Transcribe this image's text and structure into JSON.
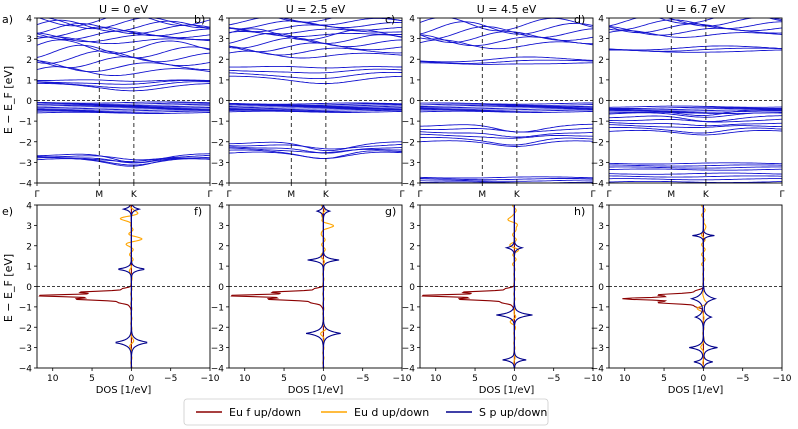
{
  "figure": {
    "ylabel_bands": "E − E_F [eV]",
    "ylabel_dos": "E − E_F [eV]",
    "xlabel_dos": "DOS [1/eV]"
  },
  "legend": {
    "items": [
      {
        "label": "Eu f up/down",
        "color": "#8b0000"
      },
      {
        "label": "Eu d up/down",
        "color": "#ffa500"
      },
      {
        "label": "S p up/down",
        "color": "#00008b"
      }
    ]
  },
  "colors": {
    "bands": "#1515d0",
    "eu_f": "#8b0000",
    "eu_d": "#ffa500",
    "s_p": "#00008b"
  },
  "chart_data": [
    {
      "type": "line",
      "panel": "a)",
      "title": "U = 0 eV",
      "x_ticks": [
        "Γ",
        "M",
        "K",
        "Γ"
      ],
      "ylim": [
        -4,
        4
      ],
      "y_ticks": [
        -4,
        -3,
        -2,
        -1,
        0,
        1,
        2,
        3,
        4
      ],
      "vlines": [
        "M",
        "K"
      ],
      "hline": 0,
      "band_groups": [
        {
          "center": -2.75,
          "spread": 0.12,
          "count": 6,
          "shape": "gap_at_K",
          "shift": -0.35
        },
        {
          "center": -0.35,
          "spread": 0.25,
          "count": 10,
          "shape": "flat",
          "shift": 0.05
        },
        {
          "center": 0.9,
          "spread": 0.15,
          "count": 4,
          "shape": "dip_at_K",
          "shift": -0.2
        },
        {
          "center": 2.0,
          "spread": 0.6,
          "count": 6,
          "shape": "wavy",
          "shift": 0.4
        },
        {
          "center": 3.4,
          "spread": 0.5,
          "count": 8,
          "shape": "wavy",
          "shift": 0.3
        }
      ]
    },
    {
      "type": "line",
      "panel": "b)",
      "title": "U = 2.5 eV",
      "x_ticks": [
        "Γ",
        "M",
        "K",
        "Γ"
      ],
      "ylim": [
        -4,
        4
      ],
      "y_ticks": [
        -4,
        -3,
        -2,
        -1,
        0,
        1,
        2,
        3,
        4
      ],
      "vlines": [
        "M",
        "K"
      ],
      "hline": 0,
      "band_groups": [
        {
          "center": -2.3,
          "spread": 0.25,
          "count": 6,
          "shape": "gap_at_K",
          "shift": -0.35
        },
        {
          "center": -0.35,
          "spread": 0.2,
          "count": 10,
          "shape": "flat",
          "shift": 0.05
        },
        {
          "center": 1.4,
          "spread": 0.3,
          "count": 4,
          "shape": "dip_at_K",
          "shift": -0.2
        },
        {
          "center": 2.7,
          "spread": 0.5,
          "count": 6,
          "shape": "wavy",
          "shift": 0.3
        },
        {
          "center": 3.6,
          "spread": 0.4,
          "count": 6,
          "shape": "wavy",
          "shift": 0.2
        }
      ]
    },
    {
      "type": "line",
      "panel": "c)",
      "title": "U = 4.5  eV",
      "x_ticks": [
        "Γ",
        "M",
        "K",
        "Γ"
      ],
      "ylim": [
        -4,
        4
      ],
      "y_ticks": [
        -4,
        -3,
        -2,
        -1,
        0,
        1,
        2,
        3,
        4
      ],
      "vlines": [
        "M",
        "K"
      ],
      "hline": 0,
      "band_groups": [
        {
          "center": -3.85,
          "spread": 0.12,
          "count": 4,
          "shape": "flat",
          "shift": 0.05
        },
        {
          "center": -1.6,
          "spread": 0.4,
          "count": 6,
          "shape": "gap_at_K",
          "shift": -0.3
        },
        {
          "center": -0.35,
          "spread": 0.2,
          "count": 8,
          "shape": "flat",
          "shift": 0.05
        },
        {
          "center": 1.85,
          "spread": 0.1,
          "count": 3,
          "shape": "dip_at_K",
          "shift": 0.1
        },
        {
          "center": 3.2,
          "spread": 0.5,
          "count": 6,
          "shape": "wavy",
          "shift": 0.4
        }
      ]
    },
    {
      "type": "line",
      "panel": "d)",
      "title": "U = 6.7 eV",
      "x_ticks": [
        "Γ",
        "M",
        "K",
        "Γ"
      ],
      "ylim": [
        -4,
        4
      ],
      "y_ticks": [
        -4,
        -3,
        -2,
        -1,
        0,
        1,
        2,
        3,
        4
      ],
      "vlines": [
        "M",
        "K"
      ],
      "hline": 0,
      "band_groups": [
        {
          "center": -3.75,
          "spread": 0.2,
          "count": 4,
          "shape": "flat",
          "shift": 0.05
        },
        {
          "center": -3.2,
          "spread": 0.15,
          "count": 4,
          "shape": "flat",
          "shift": 0.05
        },
        {
          "center": -1.0,
          "spread": 0.5,
          "count": 8,
          "shape": "gap_at_K",
          "shift": -0.2
        },
        {
          "center": -0.45,
          "spread": 0.15,
          "count": 6,
          "shape": "flat",
          "shift": 0.05
        },
        {
          "center": 2.45,
          "spread": 0.08,
          "count": 3,
          "shape": "dip_at_K",
          "shift": 0.05
        },
        {
          "center": 3.6,
          "spread": 0.4,
          "count": 6,
          "shape": "wavy",
          "shift": 0.3
        }
      ]
    },
    {
      "type": "line",
      "panel": "e)",
      "xlabel": "DOS [1/eV]",
      "xlim": [
        12,
        -10
      ],
      "ylim": [
        -4,
        4
      ],
      "x_ticks": [
        10,
        5,
        0,
        -5,
        -10
      ],
      "y_ticks": [
        -4,
        -3,
        -2,
        -1,
        0,
        1,
        2,
        3,
        4
      ],
      "hline": 0,
      "dos_f": [
        {
          "e": -0.45,
          "h": 11.5,
          "w": 0.18
        }
      ],
      "dos_d_peaks": [
        {
          "e": 3.4,
          "h": 1.8
        },
        {
          "e": 2.3,
          "h": 1.2
        },
        {
          "e": 0.8,
          "h": 0.3
        },
        {
          "e": -2.8,
          "h": 0.4
        }
      ],
      "dos_p_peaks": [
        {
          "e": 0.85,
          "h": 1.9,
          "w": 0.2
        },
        {
          "e": -2.75,
          "h": 2.2,
          "w": 0.3
        },
        {
          "e": 3.8,
          "h": 1.0,
          "w": 0.2
        }
      ]
    },
    {
      "type": "line",
      "panel": "f)",
      "xlabel": "DOS [1/eV]",
      "xlim": [
        12,
        -10
      ],
      "ylim": [
        -4,
        4
      ],
      "x_ticks": [
        10,
        5,
        0,
        -5,
        -10
      ],
      "y_ticks": [
        -4,
        -3,
        -2,
        -1,
        0,
        1,
        2,
        3,
        4
      ],
      "hline": 0,
      "dos_f": [
        {
          "e": -0.45,
          "h": 11.5,
          "w": 0.18
        }
      ],
      "dos_d_peaks": [
        {
          "e": 3.0,
          "h": 1.5
        },
        {
          "e": 1.3,
          "h": 0.4
        },
        {
          "e": -2.2,
          "h": 0.4
        }
      ],
      "dos_p_peaks": [
        {
          "e": 1.3,
          "h": 2.0,
          "w": 0.2
        },
        {
          "e": -2.3,
          "h": 2.2,
          "w": 0.3
        },
        {
          "e": 3.7,
          "h": 0.8,
          "w": 0.2
        }
      ]
    },
    {
      "type": "line",
      "panel": "g)",
      "xlabel": "DOS [1/eV]",
      "xlim": [
        12,
        -10
      ],
      "ylim": [
        -4,
        4
      ],
      "x_ticks": [
        10,
        5,
        0,
        -5,
        -10
      ],
      "y_ticks": [
        -4,
        -3,
        -2,
        -1,
        0,
        1,
        2,
        3,
        4
      ],
      "hline": 0,
      "dos_f": [
        {
          "e": -0.45,
          "h": 11.5,
          "w": 0.18
        }
      ],
      "dos_d_peaks": [
        {
          "e": 3.2,
          "h": 1.2
        },
        {
          "e": 1.9,
          "h": 0.5
        },
        {
          "e": -1.7,
          "h": 0.5
        }
      ],
      "dos_p_peaks": [
        {
          "e": 1.9,
          "h": 1.0,
          "w": 0.2
        },
        {
          "e": -1.4,
          "h": 2.3,
          "w": 0.25
        },
        {
          "e": -3.6,
          "h": 1.5,
          "w": 0.2
        }
      ]
    },
    {
      "type": "line",
      "panel": "h)",
      "xlabel": "DOS [1/eV]",
      "xlim": [
        12,
        -10
      ],
      "ylim": [
        -4,
        4
      ],
      "x_ticks": [
        10,
        5,
        0,
        -5,
        -10
      ],
      "y_ticks": [
        -4,
        -3,
        -2,
        -1,
        0,
        1,
        2,
        3,
        4
      ],
      "hline": 0,
      "dos_f": [
        {
          "e": -0.6,
          "h": 9.5,
          "w": 0.2
        }
      ],
      "dos_d_peaks": [
        {
          "e": 3.0,
          "h": 0.5
        },
        {
          "e": -1.0,
          "h": 1.0
        },
        {
          "e": -3.0,
          "h": 0.4
        }
      ],
      "dos_p_peaks": [
        {
          "e": 2.5,
          "h": 1.4,
          "w": 0.15
        },
        {
          "e": -0.6,
          "h": 1.5,
          "w": 0.35
        },
        {
          "e": -1.5,
          "h": 1.0,
          "w": 0.3
        },
        {
          "e": -3.0,
          "h": 1.8,
          "w": 0.25
        },
        {
          "e": -3.7,
          "h": 1.2,
          "w": 0.2
        }
      ]
    }
  ]
}
